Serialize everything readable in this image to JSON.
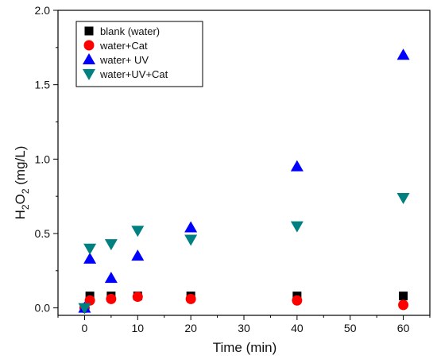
{
  "chart_data": {
    "type": "scatter",
    "xlabel": "Time (min)",
    "ylabel_main": "H",
    "ylabel_sub1": "2",
    "ylabel_mid": "O",
    "ylabel_sub2": "2",
    "ylabel_unit": " (mg/L)",
    "xlim": [
      -5,
      65
    ],
    "ylim": [
      -0.05,
      2.0
    ],
    "xticks": [
      0,
      10,
      20,
      30,
      40,
      50,
      60
    ],
    "xtick_labels": [
      "0",
      "10",
      "20",
      "30",
      "40",
      "50",
      "60"
    ],
    "yticks": [
      0.0,
      0.5,
      1.0,
      1.5,
      2.0
    ],
    "ytick_labels": [
      "0.0",
      "0.5",
      "1.0",
      "1.5",
      "2.0"
    ],
    "legend_position": "top-left",
    "series": [
      {
        "name": "blank (water)",
        "marker": "square",
        "color": "#000000",
        "points": [
          [
            0,
            0.0
          ],
          [
            1,
            0.08
          ],
          [
            5,
            0.08
          ],
          [
            10,
            0.08
          ],
          [
            20,
            0.08
          ],
          [
            40,
            0.08
          ],
          [
            60,
            0.08
          ]
        ]
      },
      {
        "name": "water+Cat",
        "marker": "circle",
        "color": "#ff0000",
        "points": [
          [
            0,
            0.0
          ],
          [
            1,
            0.05
          ],
          [
            5,
            0.06
          ],
          [
            10,
            0.075
          ],
          [
            20,
            0.06
          ],
          [
            40,
            0.05
          ],
          [
            60,
            0.02
          ]
        ]
      },
      {
        "name": "water+ UV",
        "marker": "triangle-up",
        "color": "#0000ff",
        "points": [
          [
            0,
            0.0
          ],
          [
            1,
            0.33
          ],
          [
            5,
            0.2
          ],
          [
            10,
            0.35
          ],
          [
            20,
            0.54
          ],
          [
            40,
            0.95
          ],
          [
            60,
            1.7
          ]
        ]
      },
      {
        "name": " water+UV+Cat",
        "marker": "triangle-down",
        "color": "#008080",
        "points": [
          [
            0,
            0.0
          ],
          [
            1,
            0.4
          ],
          [
            5,
            0.43
          ],
          [
            10,
            0.52
          ],
          [
            20,
            0.46
          ],
          [
            40,
            0.55
          ],
          [
            60,
            0.74
          ]
        ]
      }
    ]
  }
}
